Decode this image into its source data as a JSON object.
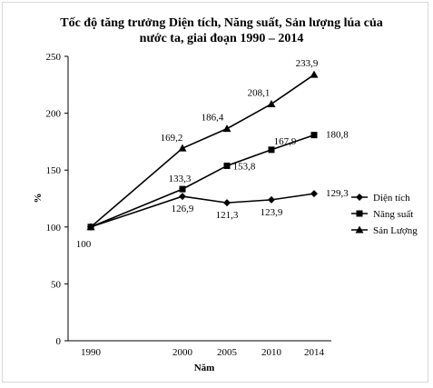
{
  "chart_data": {
    "type": "line",
    "title_lines": [
      "Tốc độ tăng trưởng Diện tích, Năng suất, Sản lượng lúa của",
      "nước ta, giai đoạn 1990 – 2014"
    ],
    "xlabel": "Năm",
    "ylabel": "%",
    "x": [
      "1990",
      "2000",
      "2005",
      "2010",
      "2014"
    ],
    "ylim": [
      0,
      250
    ],
    "yticks": [
      0,
      50,
      100,
      150,
      200,
      250
    ],
    "grid": false,
    "legend_position": "right",
    "series": [
      {
        "name": "Diện tích",
        "marker": "diamond",
        "values": [
          100,
          126.9,
          121.3,
          123.9,
          129.3
        ],
        "labels": [
          "100",
          "126,9",
          "121,3",
          "123,9",
          "129,3"
        ]
      },
      {
        "name": "Năng suất",
        "marker": "square",
        "values": [
          100,
          133.3,
          153.8,
          167.9,
          180.8
        ],
        "labels": [
          "",
          "133,3",
          "153,8",
          "167,9",
          "180,8"
        ]
      },
      {
        "name": "Sản Lượng",
        "marker": "triangle",
        "values": [
          100,
          169.2,
          186.4,
          208.1,
          233.9
        ],
        "labels": [
          "",
          "169,2",
          "186,4",
          "208,1",
          "233,9"
        ]
      }
    ],
    "colors": {
      "line": "#000000",
      "axis": "#000000"
    }
  }
}
